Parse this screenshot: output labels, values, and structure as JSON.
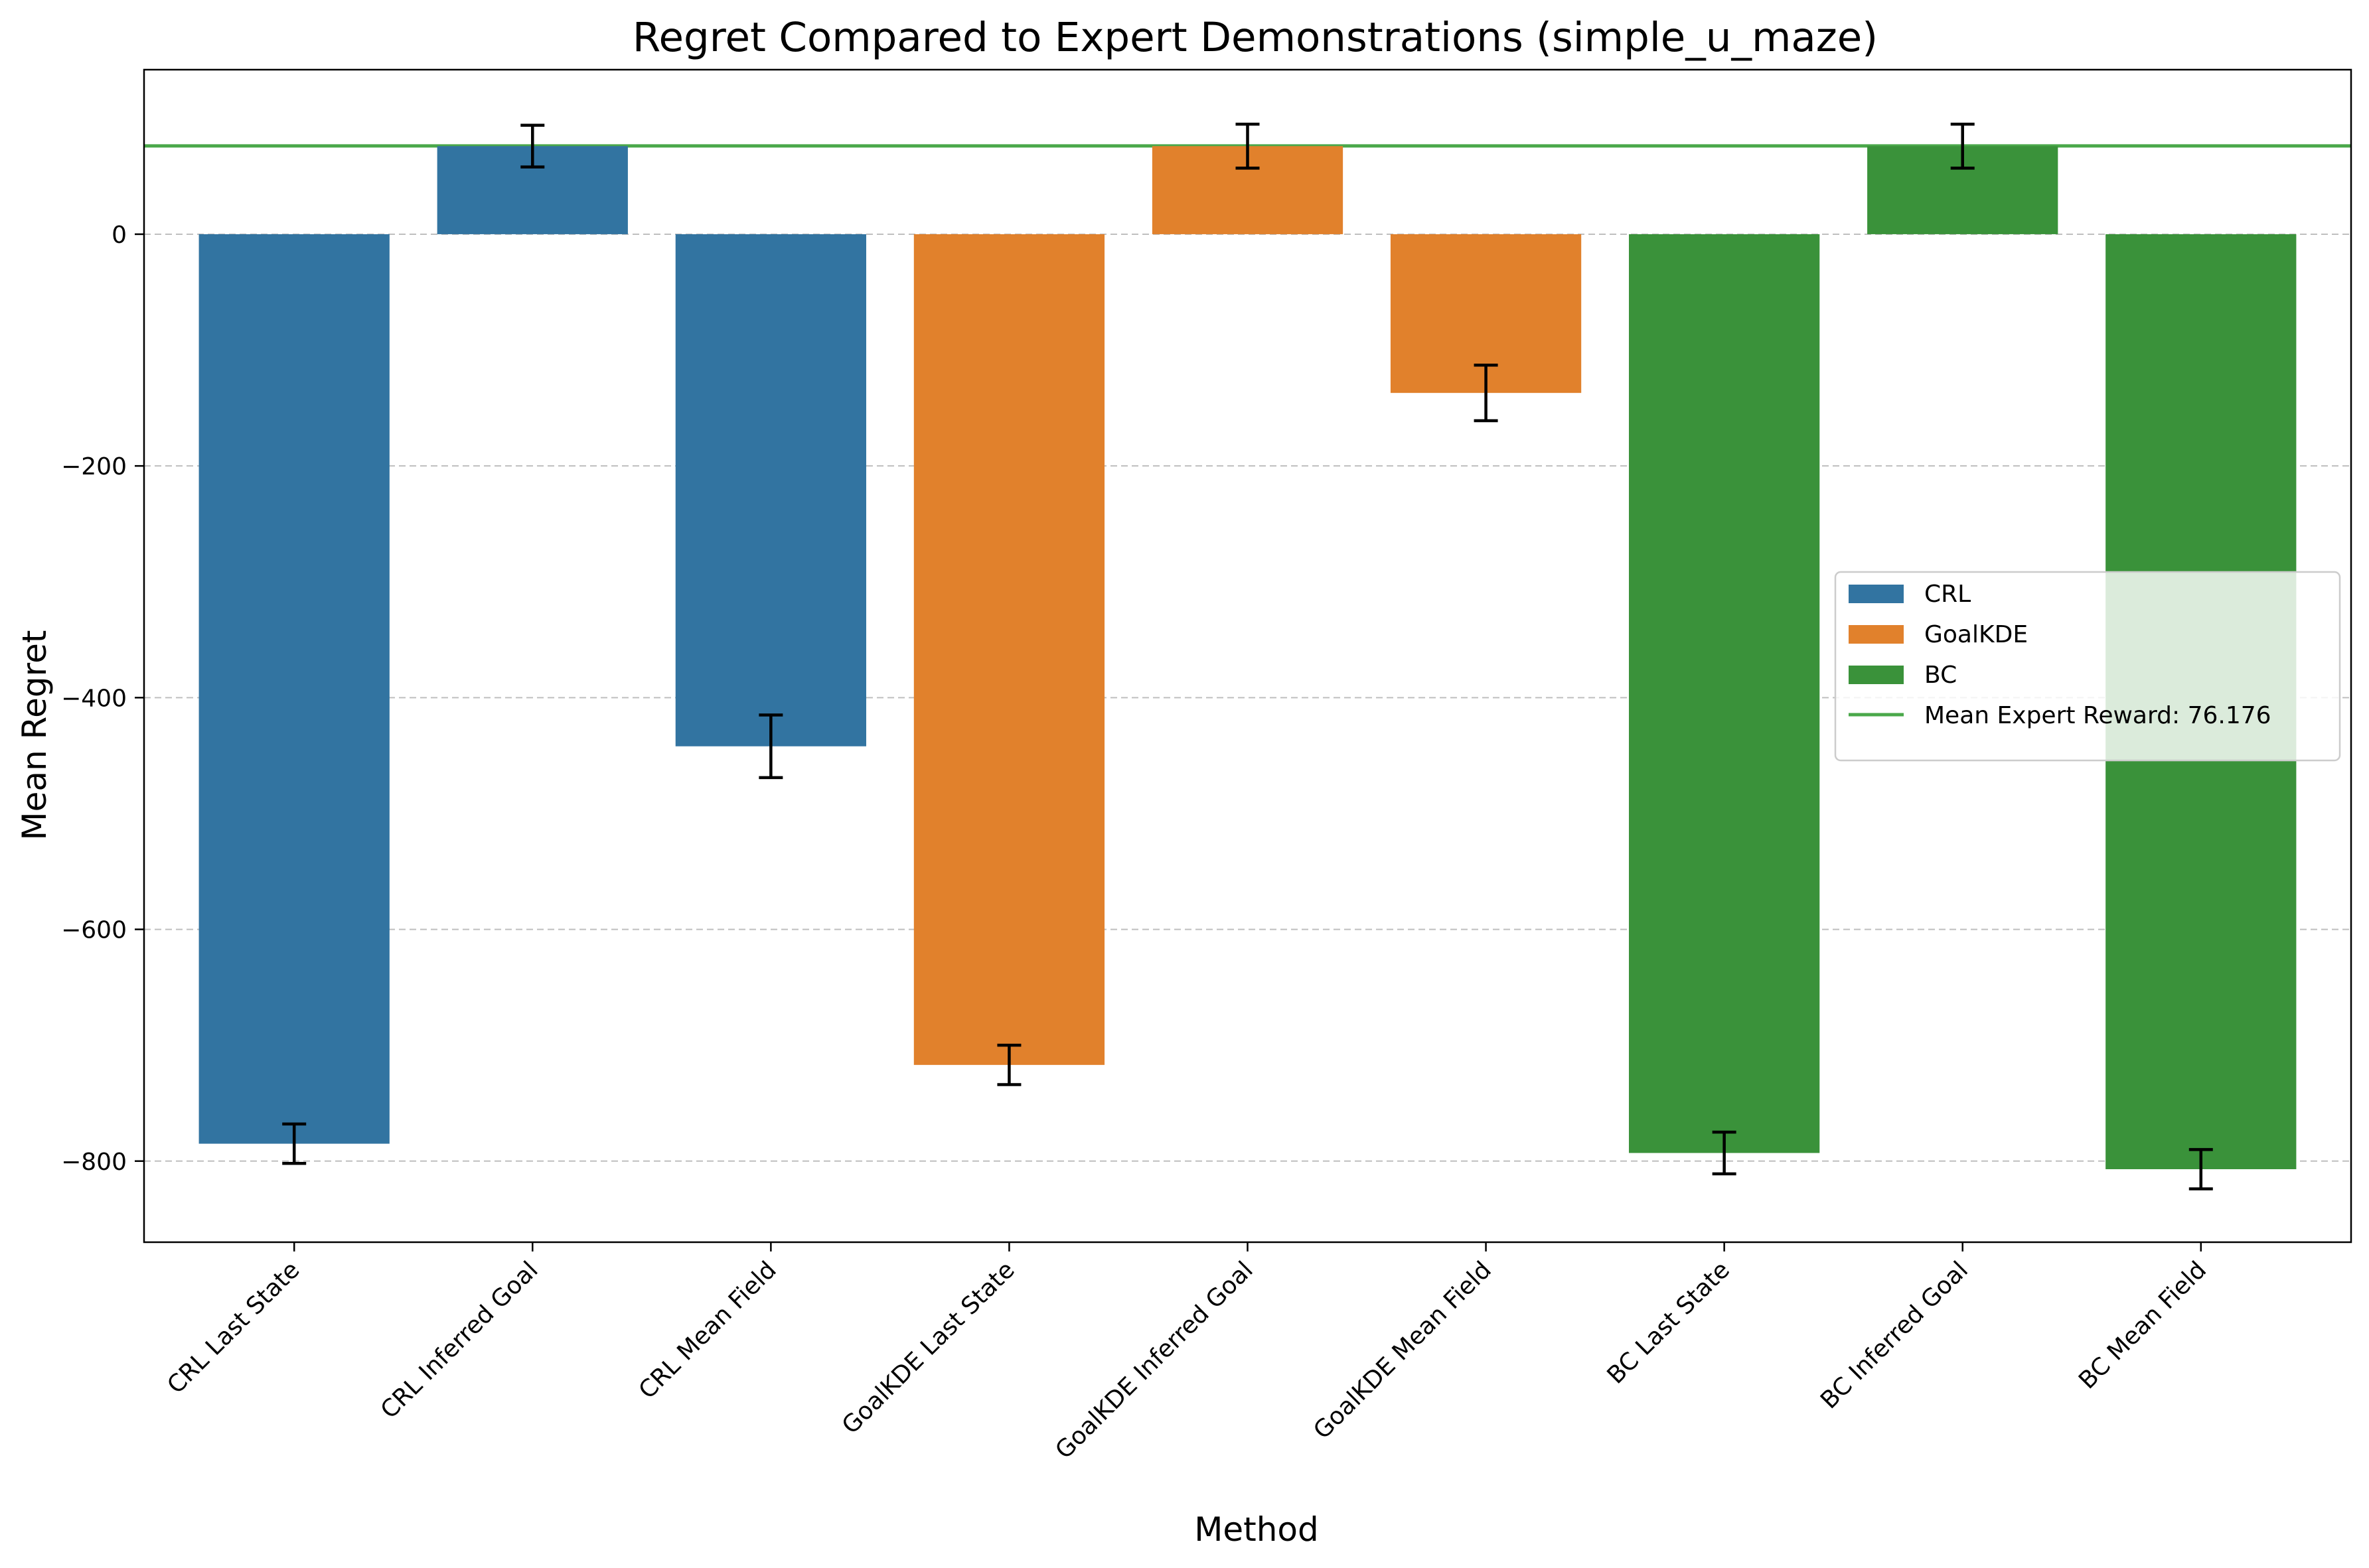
{
  "chart_data": {
    "type": "bar",
    "title": "Regret Compared to Expert Demonstrations (simple_u_maze)",
    "xlabel": "Method",
    "ylabel": "Mean Regret",
    "ylim": [
      -870,
      142
    ],
    "yticks": [
      0,
      -200,
      -400,
      -600,
      -800
    ],
    "ytick_labels": [
      "0",
      "−200",
      "−400",
      "−600",
      "−800"
    ],
    "grid": "horizontal dashed",
    "legend_position": "center-right",
    "categories": [
      "CRL Last State",
      "CRL Inferred Goal",
      "CRL Mean Field",
      "GoalKDE Last State",
      "GoalKDE Inferred Goal",
      "GoalKDE Mean Field",
      "BC Last State",
      "BC Inferred Goal",
      "BC Mean Field"
    ],
    "values": [
      -785,
      76,
      -442,
      -717,
      76,
      -137,
      -793,
      76,
      -807
    ],
    "errors": [
      17,
      18,
      27,
      17,
      19,
      24,
      18,
      19,
      17
    ],
    "bar_groups": [
      "CRL",
      "CRL",
      "CRL",
      "GoalKDE",
      "GoalKDE",
      "GoalKDE",
      "BC",
      "BC",
      "BC"
    ],
    "series": [
      {
        "name": "CRL",
        "color": "#3274a1"
      },
      {
        "name": "GoalKDE",
        "color": "#e1812c"
      },
      {
        "name": "BC",
        "color": "#3a923a"
      }
    ],
    "reference_line": {
      "label": "Mean Expert Reward: 76.176",
      "value": 76.176,
      "color": "#4aa84a"
    }
  }
}
